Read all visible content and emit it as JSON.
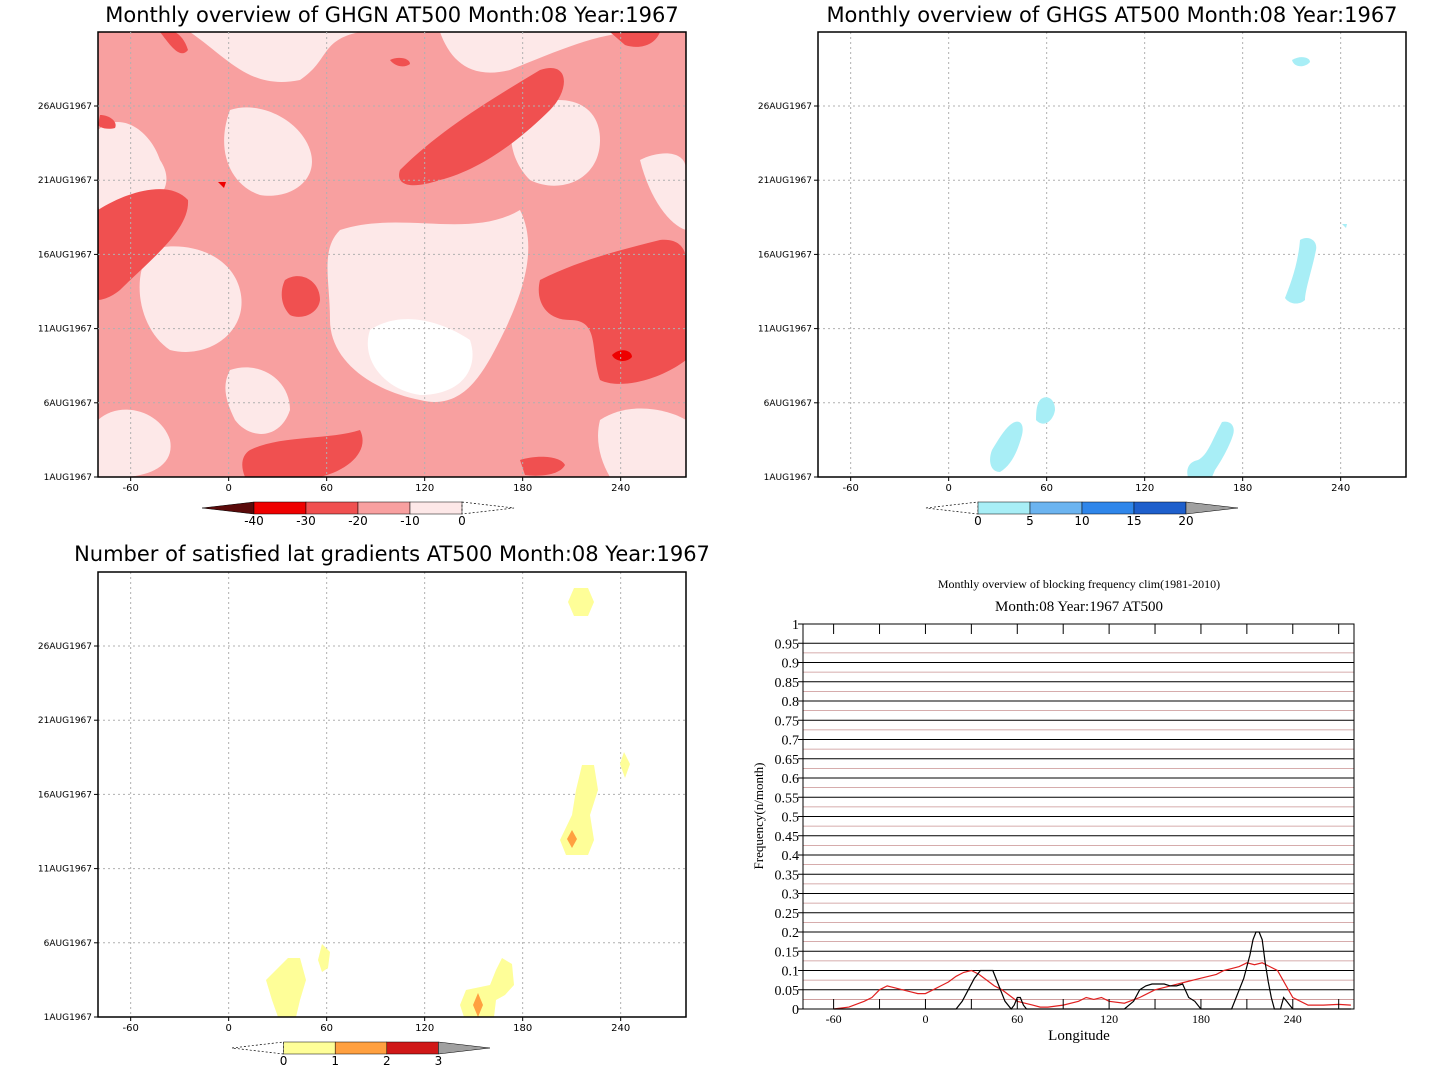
{
  "chart_data": [
    {
      "type": "heatmap",
      "title": "Monthly overview of GHGN AT500 Month:08 Year:1967",
      "x_ticks": [
        "-60",
        "0",
        "60",
        "120",
        "180",
        "240"
      ],
      "y_ticks": [
        "1AUG1967",
        "6AUG1967",
        "11AUG1967",
        "16AUG1967",
        "21AUG1967",
        "26AUG1967"
      ],
      "xlim": [
        -80,
        280
      ],
      "colorbar": {
        "ticks": [
          "-40",
          "-30",
          "-20",
          "-10",
          "0"
        ],
        "colors": [
          "#5a0a0a",
          "#ee0000",
          "#f05050",
          "#f8a0a0",
          "#fde8e8"
        ]
      }
    },
    {
      "type": "heatmap",
      "title": "Monthly overview of GHGS AT500 Month:08 Year:1967",
      "x_ticks": [
        "-60",
        "0",
        "60",
        "120",
        "180",
        "240"
      ],
      "y_ticks": [
        "1AUG1967",
        "6AUG1967",
        "11AUG1967",
        "16AUG1967",
        "21AUG1967",
        "26AUG1967"
      ],
      "xlim": [
        -80,
        280
      ],
      "colorbar": {
        "ticks": [
          "0",
          "5",
          "10",
          "15",
          "20"
        ],
        "colors": [
          "#a8eef6",
          "#6cb4f0",
          "#2f86ea",
          "#1e5fcc",
          "#a0a0a0"
        ]
      }
    },
    {
      "type": "heatmap",
      "title": "Number of satisfied lat gradients AT500 Month:08 Year:1967",
      "x_ticks": [
        "-60",
        "0",
        "60",
        "120",
        "180",
        "240"
      ],
      "y_ticks": [
        "1AUG1967",
        "6AUG1967",
        "11AUG1967",
        "16AUG1967",
        "21AUG1967",
        "26AUG1967"
      ],
      "xlim": [
        -80,
        280
      ],
      "colorbar": {
        "ticks": [
          "0",
          "1",
          "2",
          "3"
        ],
        "colors": [
          "#fefe98",
          "#ffa040",
          "#d01818",
          "#a0a0a0"
        ]
      }
    },
    {
      "type": "line",
      "title": "Monthly overview of blocking frequency clim(1981-2010)",
      "subtitle": "Month:08 Year:1967  AT500",
      "xlabel": "Longitude",
      "ylabel": "Frequency(n/month)",
      "xlim": [
        -80,
        280
      ],
      "ylim": [
        0,
        1
      ],
      "x_ticks": [
        "-60",
        "0",
        "60",
        "120",
        "180",
        "240"
      ],
      "y_ticks": [
        "0",
        "0.05",
        "0.1",
        "0.15",
        "0.2",
        "0.25",
        "0.3",
        "0.35",
        "0.4",
        "0.45",
        "0.5",
        "0.55",
        "0.6",
        "0.65",
        "0.7",
        "0.75",
        "0.8",
        "0.85",
        "0.9",
        "0.95",
        "1"
      ],
      "series": [
        {
          "color": "#e02020",
          "x": [
            -60,
            -50,
            -40,
            -35,
            -30,
            -25,
            -20,
            -15,
            -10,
            -5,
            0,
            5,
            10,
            15,
            20,
            25,
            30,
            35,
            40,
            45,
            50,
            55,
            60,
            65,
            70,
            75,
            80,
            90,
            100,
            105,
            110,
            115,
            120,
            130,
            140,
            150,
            160,
            170,
            180,
            190,
            195,
            200,
            205,
            210,
            215,
            220,
            225,
            230,
            240,
            250,
            260,
            270,
            278
          ],
          "values": [
            0,
            0.005,
            0.02,
            0.03,
            0.05,
            0.06,
            0.055,
            0.05,
            0.045,
            0.04,
            0.04,
            0.05,
            0.06,
            0.07,
            0.085,
            0.095,
            0.1,
            0.09,
            0.075,
            0.06,
            0.05,
            0.035,
            0.02,
            0.015,
            0.01,
            0.005,
            0.005,
            0.01,
            0.02,
            0.03,
            0.025,
            0.03,
            0.02,
            0.015,
            0.03,
            0.05,
            0.06,
            0.07,
            0.08,
            0.09,
            0.1,
            0.105,
            0.11,
            0.12,
            0.115,
            0.12,
            0.11,
            0.1,
            0.03,
            0.01,
            0.01,
            0.012,
            0.01
          ]
        },
        {
          "color": "#000000",
          "x": [
            -60,
            20,
            24,
            28,
            32,
            36,
            40,
            44,
            48,
            52,
            56,
            58,
            60,
            62,
            64,
            66,
            68,
            130,
            136,
            140,
            144,
            148,
            152,
            156,
            160,
            164,
            168,
            172,
            176,
            180,
            200,
            204,
            208,
            212,
            214,
            216,
            218,
            220,
            222,
            224,
            226,
            228,
            232,
            234,
            236,
            238,
            240,
            260,
            278
          ],
          "values": [
            0,
            0,
            0.02,
            0.05,
            0.08,
            0.1,
            0.1,
            0.1,
            0.06,
            0.02,
            0,
            0.01,
            0.03,
            0.03,
            0.01,
            0,
            0,
            0,
            0.02,
            0.05,
            0.06,
            0.065,
            0.065,
            0.065,
            0.06,
            0.06,
            0.065,
            0.03,
            0.02,
            0,
            0,
            0.04,
            0.08,
            0.14,
            0.18,
            0.2,
            0.2,
            0.18,
            0.12,
            0.07,
            0.03,
            0,
            0,
            0.03,
            0.02,
            0.01,
            0,
            0,
            0
          ]
        }
      ]
    }
  ]
}
